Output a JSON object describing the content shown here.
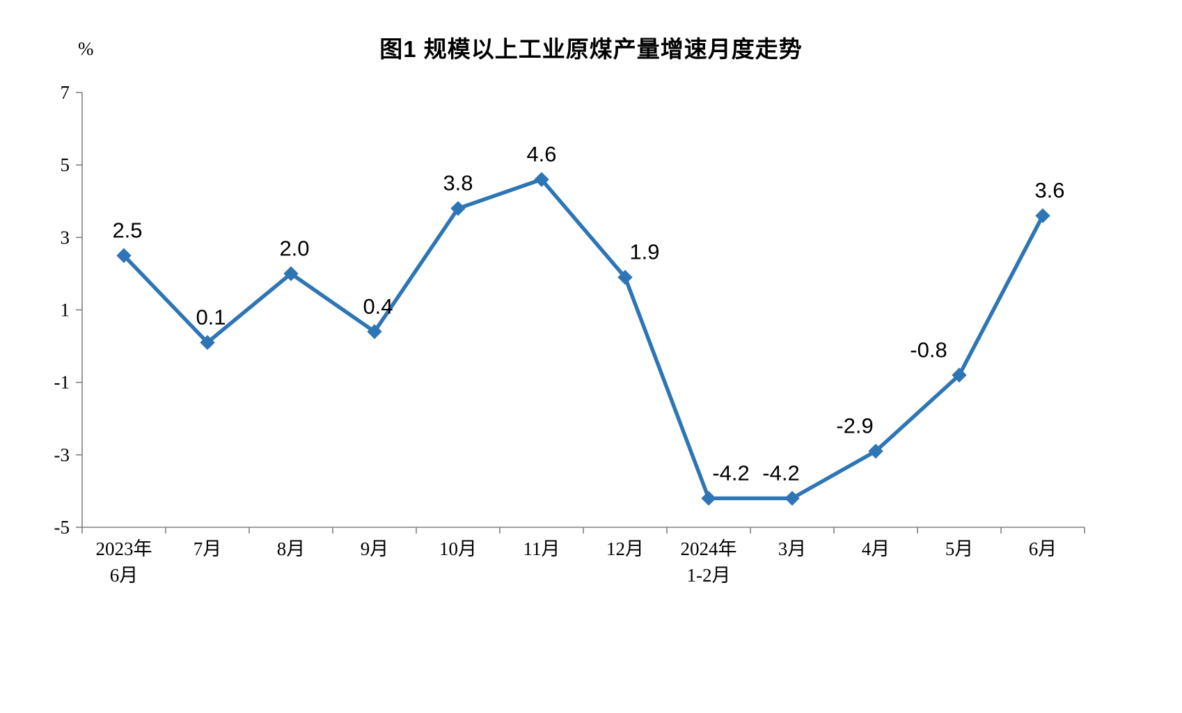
{
  "chart": {
    "title": "图1  规模以上工业原煤产量增速月度走势",
    "unit": "%"
  },
  "chart_data": {
    "type": "line",
    "title": "图1  规模以上工业原煤产量增速月度走势",
    "ylabel": "%",
    "xlabel": "",
    "categories": [
      "2023年\n6月",
      "7月",
      "8月",
      "9月",
      "10月",
      "11月",
      "12月",
      "2024年\n1-2月",
      "3月",
      "4月",
      "5月",
      "6月"
    ],
    "values": [
      2.5,
      0.1,
      2.0,
      0.4,
      3.8,
      4.6,
      1.9,
      -4.2,
      -4.2,
      -2.9,
      -0.8,
      3.6
    ],
    "labels": [
      "2.5",
      "0.1",
      "2.0",
      "0.4",
      "3.8",
      "4.6",
      "1.9",
      "-4.2",
      "-4.2",
      "-2.9",
      "-0.8",
      "3.6"
    ],
    "label_dx": [
      5,
      5,
      5,
      5,
      0,
      0,
      28,
      32,
      -16,
      -30,
      -44,
      10
    ],
    "ylim": [
      -5,
      7
    ],
    "yticks": [
      -5,
      -3,
      -1,
      1,
      3,
      5,
      7
    ],
    "grid": false,
    "legend": "none",
    "line_color": "#2E75B6",
    "axis_color": "#808080",
    "text_color": "#000000"
  }
}
